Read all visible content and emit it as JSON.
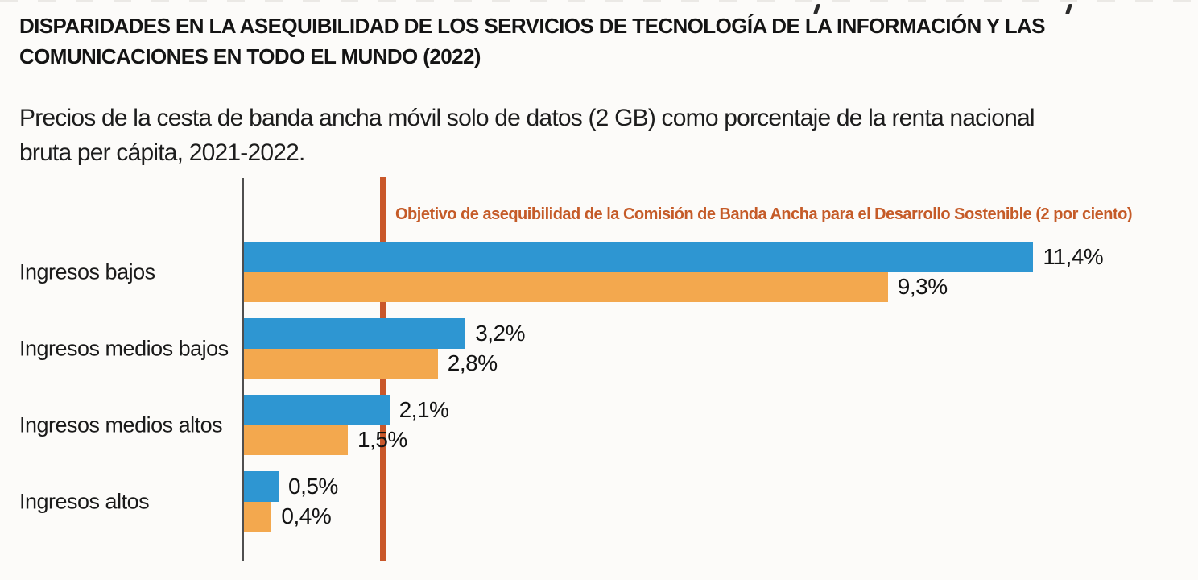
{
  "page": {
    "title_line1": "DISPARIDADES EN LA ASEQUIBILIDAD DE LOS SERVICIOS DE TECNOLOGÍA DE LA INFORMACIÓN Y LAS",
    "title_line2": "COMUNICACIONES EN TODO EL MUNDO (2022)",
    "subtitle_line1": "Precios de la cesta de banda ancha móvil solo de datos (2 GB) como porcentaje de la renta nacional",
    "subtitle_line2": "bruta per cápita, 2021-2022."
  },
  "chart_data": {
    "type": "bar",
    "orientation": "horizontal",
    "categories": [
      "Ingresos bajos",
      "Ingresos medios bajos",
      "Ingresos medios altos",
      "Ingresos altos"
    ],
    "series": [
      {
        "name": "blue",
        "color": "#2e96d2",
        "values": [
          11.4,
          3.2,
          2.1,
          0.5
        ],
        "labels": [
          "11,4%",
          "3,2%",
          "2,1%",
          "0,5%"
        ]
      },
      {
        "name": "orange",
        "color": "#f3a84e",
        "values": [
          9.3,
          2.8,
          1.5,
          0.4
        ],
        "labels": [
          "9,3%",
          "2,8%",
          "1,5%",
          "0,4%"
        ]
      }
    ],
    "target_line": {
      "value": 2,
      "label": "Objetivo de asequibilidad de la Comisión de Banda Ancha para el Desarrollo Sostenible (2 por ciento)",
      "line_color": "#c9572a",
      "label_color": "#c55b28"
    },
    "value_suffix": "%",
    "xlim": [
      0,
      13.8
    ],
    "axis_color": "#4f4f4f",
    "grid": false,
    "legend": "none"
  }
}
